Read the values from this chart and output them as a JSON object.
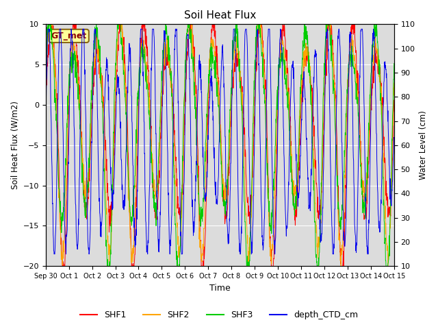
{
  "title": "Soil Heat Flux",
  "xlabel": "Time",
  "ylabel_left": "Soil Heat Flux (W/m2)",
  "ylabel_right": "Water Level (cm)",
  "ylim_left": [
    -20,
    10
  ],
  "ylim_right": [
    10,
    110
  ],
  "annotation_text": "GT_met",
  "annotation_color": "#8B0000",
  "annotation_bg": "#FFFF99",
  "annotation_border": "#8B6914",
  "xtick_labels": [
    "Sep 30",
    "Oct 1",
    "Oct 2",
    "Oct 3",
    "Oct 4",
    "Oct 5",
    "Oct 6",
    "Oct 7",
    "Oct 8",
    "Oct 9",
    "Oct 10",
    "Oct 11",
    "Oct 12",
    "Oct 13",
    "Oct 14",
    "Oct 15"
  ],
  "colors": {
    "SHF1": "#FF0000",
    "SHF2": "#FFA500",
    "SHF3": "#00CC00",
    "depth_CTD_cm": "#0000EE"
  },
  "background_color": "#DCDCDC",
  "n_days": 15,
  "samples_per_day": 96
}
